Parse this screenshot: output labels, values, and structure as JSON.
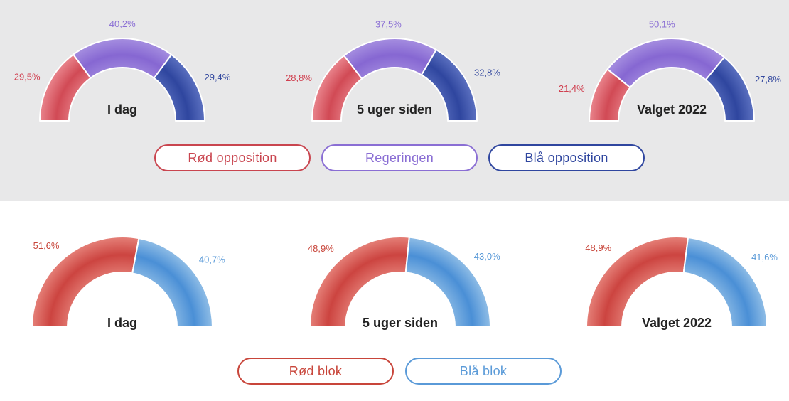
{
  "chart_data": [
    {
      "type": "gauge",
      "group": "top",
      "series": [
        {
          "name": "Rød opposition",
          "color": "#d9505c"
        },
        {
          "name": "Regeringen",
          "color": "#8e70d6"
        },
        {
          "name": "Blå opposition",
          "color": "#3a52aa"
        }
      ],
      "gauges": [
        {
          "label": "I dag",
          "values": [
            29.5,
            40.2,
            29.4
          ],
          "value_labels": [
            "29,5%",
            "40,2%",
            "29,4%"
          ]
        },
        {
          "label": "5 uger siden",
          "values": [
            28.8,
            37.5,
            32.8
          ],
          "value_labels": [
            "28,8%",
            "37,5%",
            "32,8%"
          ]
        },
        {
          "label": "Valget 2022",
          "values": [
            21.4,
            50.1,
            27.8
          ],
          "value_labels": [
            "21,4%",
            "50,1%",
            "27,8%"
          ]
        }
      ]
    },
    {
      "type": "gauge",
      "group": "bottom",
      "series": [
        {
          "name": "Rød blok",
          "color": "#d9505c"
        },
        {
          "name": "Blå blok",
          "color": "#5a9ad8"
        }
      ],
      "gauges": [
        {
          "label": "I dag",
          "values": [
            51.6,
            40.7
          ],
          "value_labels": [
            "51,6%",
            "40,7%"
          ]
        },
        {
          "label": "5 uger siden",
          "values": [
            48.9,
            43.0
          ],
          "value_labels": [
            "48,9%",
            "43,0%"
          ]
        },
        {
          "label": "Valget 2022",
          "values": [
            48.9,
            41.6
          ],
          "value_labels": [
            "48,9%",
            "41,6%"
          ]
        }
      ]
    }
  ],
  "legend_top": [
    "Rød opposition",
    "Regeringen",
    "Blå opposition"
  ],
  "legend_bottom": [
    "Rød blok",
    "Blå blok"
  ],
  "colors": {
    "red_light": "#e9848c",
    "red_dark": "#d14a55",
    "purple_light": "#a58ee0",
    "purple_dark": "#8667d2",
    "blue_light": "#5b70c0",
    "blue_dark": "#2f469f",
    "bluebl_light": "#8fbde6",
    "bluebl_dark": "#4a8fd6",
    "red_text": "#d04050",
    "purple_text": "#8a6ed4",
    "blue_text": "#34499f",
    "redbl_text": "#c8453a",
    "bluebl_text": "#5a9ad8",
    "redbl_light": "#e58078",
    "redbl_dark": "#cc4440"
  }
}
